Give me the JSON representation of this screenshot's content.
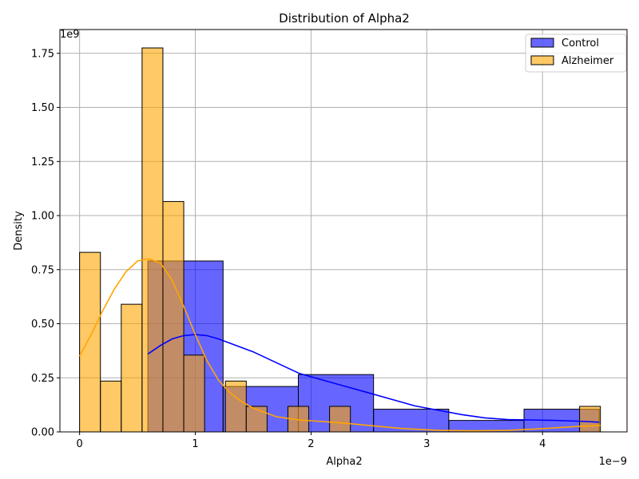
{
  "chart_data": {
    "type": "bar",
    "title": "Distribution of Alpha2",
    "xlabel": "Alpha2",
    "ylabel": "Density",
    "x_multiplier": "1e−9",
    "y_multiplier": "1e9",
    "xlim": [
      -0.17,
      4.73
    ],
    "ylim": [
      0,
      1.86
    ],
    "xticks": [
      0,
      1,
      2,
      3,
      4
    ],
    "xtick_labels": [
      "0",
      "1",
      "2",
      "3",
      "4"
    ],
    "yticks": [
      0,
      0.25,
      0.5,
      0.75,
      1.0,
      1.25,
      1.5,
      1.75
    ],
    "ytick_labels": [
      "0.00",
      "0.25",
      "0.50",
      "0.75",
      "1.00",
      "1.25",
      "1.50",
      "1.75"
    ],
    "grid": true,
    "legend_position": "top-right",
    "series": [
      {
        "name": "Control",
        "color": "#0000ff",
        "fill_opacity": 0.6,
        "kde_color": "#0000ff",
        "bins": [
          {
            "x0": 0.59,
            "x1": 1.24,
            "value": 0.79
          },
          {
            "x0": 1.24,
            "x1": 1.89,
            "value": 0.21
          },
          {
            "x0": 1.89,
            "x1": 2.54,
            "value": 0.265
          },
          {
            "x0": 2.54,
            "x1": 3.19,
            "value": 0.105
          },
          {
            "x0": 3.19,
            "x1": 3.84,
            "value": 0.053
          },
          {
            "x0": 3.84,
            "x1": 4.49,
            "value": 0.105
          }
        ],
        "kde": {
          "x": [
            0.59,
            0.7,
            0.8,
            0.9,
            1.0,
            1.1,
            1.2,
            1.35,
            1.5,
            1.7,
            1.9,
            2.1,
            2.3,
            2.5,
            2.7,
            2.9,
            3.1,
            3.3,
            3.5,
            3.7,
            3.9,
            4.1,
            4.3,
            4.49
          ],
          "y": [
            0.36,
            0.4,
            0.43,
            0.445,
            0.45,
            0.445,
            0.43,
            0.4,
            0.37,
            0.32,
            0.27,
            0.24,
            0.21,
            0.18,
            0.15,
            0.12,
            0.1,
            0.08,
            0.065,
            0.057,
            0.055,
            0.053,
            0.05,
            0.045
          ]
        }
      },
      {
        "name": "Alzheimer",
        "color": "#ffa500",
        "fill_opacity": 0.6,
        "kde_color": "#ffa500",
        "bins": [
          {
            "x0": 0.0,
            "x1": 0.18,
            "value": 0.83
          },
          {
            "x0": 0.18,
            "x1": 0.36,
            "value": 0.235
          },
          {
            "x0": 0.36,
            "x1": 0.54,
            "value": 0.59
          },
          {
            "x0": 0.54,
            "x1": 0.72,
            "value": 1.775
          },
          {
            "x0": 0.72,
            "x1": 0.9,
            "value": 1.065
          },
          {
            "x0": 0.9,
            "x1": 1.08,
            "value": 0.355
          },
          {
            "x0": 1.08,
            "x1": 1.26,
            "value": 0.0
          },
          {
            "x0": 1.26,
            "x1": 1.44,
            "value": 0.235
          },
          {
            "x0": 1.44,
            "x1": 1.62,
            "value": 0.118
          },
          {
            "x0": 1.62,
            "x1": 1.8,
            "value": 0.0
          },
          {
            "x0": 1.8,
            "x1": 1.98,
            "value": 0.118
          },
          {
            "x0": 1.98,
            "x1": 2.16,
            "value": 0.0
          },
          {
            "x0": 2.16,
            "x1": 2.34,
            "value": 0.118
          },
          {
            "x0": 4.32,
            "x1": 4.5,
            "value": 0.118
          }
        ],
        "kde": {
          "x": [
            0.0,
            0.1,
            0.2,
            0.3,
            0.4,
            0.5,
            0.6,
            0.7,
            0.8,
            0.9,
            1.0,
            1.1,
            1.2,
            1.3,
            1.4,
            1.5,
            1.7,
            1.9,
            2.1,
            2.3,
            2.5,
            2.8,
            3.1,
            3.4,
            3.7,
            4.0,
            4.3,
            4.5
          ],
          "y": [
            0.35,
            0.45,
            0.56,
            0.66,
            0.74,
            0.79,
            0.8,
            0.78,
            0.7,
            0.58,
            0.45,
            0.33,
            0.24,
            0.18,
            0.14,
            0.11,
            0.07,
            0.055,
            0.048,
            0.04,
            0.03,
            0.015,
            0.007,
            0.005,
            0.007,
            0.015,
            0.025,
            0.03
          ]
        }
      }
    ]
  }
}
